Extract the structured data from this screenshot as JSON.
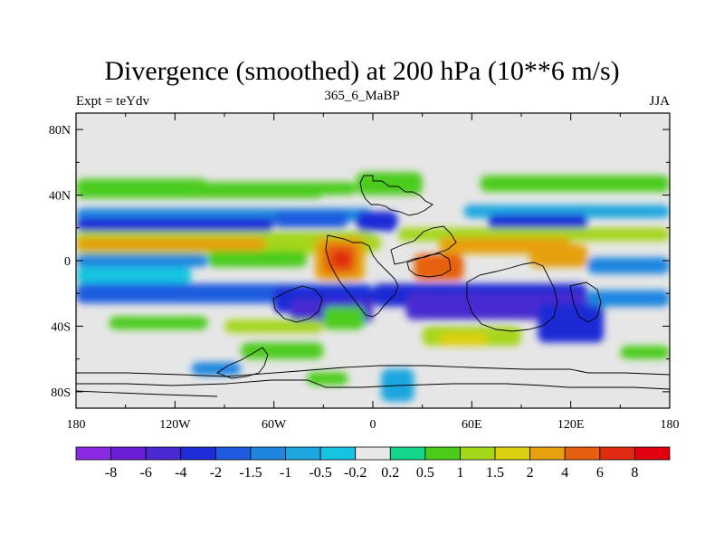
{
  "chart_data": {
    "type": "heatmap",
    "title": "Divergence (smoothed) at 200 hPa (10**6 m/s)",
    "left_label": "Expt = teYdv",
    "subtitle": "365_6_MaBP",
    "right_label": "JJA",
    "x_ticks": [
      {
        "value": -180,
        "label": "180"
      },
      {
        "value": -120,
        "label": "120W"
      },
      {
        "value": -60,
        "label": "60W"
      },
      {
        "value": 0,
        "label": "0"
      },
      {
        "value": 60,
        "label": "60E"
      },
      {
        "value": 120,
        "label": "120E"
      },
      {
        "value": 180,
        "label": "180"
      }
    ],
    "y_ticks": [
      {
        "value": 80,
        "label": "80N"
      },
      {
        "value": 40,
        "label": "40N"
      },
      {
        "value": 0,
        "label": "0"
      },
      {
        "value": -40,
        "label": "40S"
      },
      {
        "value": -80,
        "label": "80S"
      }
    ],
    "xlim": [
      -180,
      180
    ],
    "ylim": [
      -90,
      90
    ],
    "colorbar": {
      "labels": [
        "-8",
        "-6",
        "-4",
        "-2",
        "-1.5",
        "-1",
        "-0.5",
        "-0.2",
        "0.2",
        "0.5",
        "1",
        "1.5",
        "2",
        "4",
        "6",
        "8"
      ],
      "colors": [
        "#8a2be2",
        "#6a1fd6",
        "#4a2ad0",
        "#1f2bd6",
        "#1e5be0",
        "#1f86e0",
        "#1ea6e0",
        "#14c4e0",
        "#e8e8e8",
        "#14d68a",
        "#4ccc1a",
        "#a6d61a",
        "#ddd010",
        "#e6a010",
        "#e66010",
        "#e02a10",
        "#e00010"
      ]
    },
    "background_color": "#e6e6e6",
    "field_cells": [
      {
        "lon": -180,
        "lat": 50,
        "w": 80,
        "h": 12,
        "level": 10
      },
      {
        "lon": -120,
        "lat": 48,
        "w": 90,
        "h": 10,
        "level": 10
      },
      {
        "lon": -40,
        "lat": 48,
        "w": 30,
        "h": 8,
        "level": 10
      },
      {
        "lon": -10,
        "lat": 54,
        "w": 40,
        "h": 14,
        "level": 10
      },
      {
        "lon": 65,
        "lat": 52,
        "w": 115,
        "h": 10,
        "level": 10
      },
      {
        "lon": -180,
        "lat": 32,
        "w": 180,
        "h": 8,
        "level": 5
      },
      {
        "lon": -180,
        "lat": 26,
        "w": 120,
        "h": 8,
        "level": 3
      },
      {
        "lon": -60,
        "lat": 30,
        "w": 45,
        "h": 10,
        "level": 4
      },
      {
        "lon": -10,
        "lat": 30,
        "w": 25,
        "h": 12,
        "level": 3
      },
      {
        "lon": 55,
        "lat": 34,
        "w": 125,
        "h": 8,
        "level": 6
      },
      {
        "lon": 70,
        "lat": 28,
        "w": 60,
        "h": 10,
        "level": 3
      },
      {
        "lon": -180,
        "lat": 18,
        "w": 180,
        "h": 14,
        "level": 11
      },
      {
        "lon": -180,
        "lat": 14,
        "w": 115,
        "h": 8,
        "level": 13
      },
      {
        "lon": 15,
        "lat": 20,
        "w": 165,
        "h": 8,
        "level": 11
      },
      {
        "lon": 40,
        "lat": 14,
        "w": 80,
        "h": 10,
        "level": 13
      },
      {
        "lon": -20,
        "lat": 16,
        "w": 25,
        "h": 10,
        "level": 11
      },
      {
        "lon": -35,
        "lat": 14,
        "w": 30,
        "h": 26,
        "level": 13
      },
      {
        "lon": -30,
        "lat": 10,
        "w": 20,
        "h": 18,
        "level": 14
      },
      {
        "lon": -25,
        "lat": 6,
        "w": 12,
        "h": 10,
        "level": 15
      },
      {
        "lon": 25,
        "lat": 4,
        "w": 30,
        "h": 16,
        "level": 14
      },
      {
        "lon": 95,
        "lat": 10,
        "w": 35,
        "h": 14,
        "level": 13
      },
      {
        "lon": -180,
        "lat": 4,
        "w": 80,
        "h": 8,
        "level": 5
      },
      {
        "lon": -100,
        "lat": 6,
        "w": 60,
        "h": 10,
        "level": 10
      },
      {
        "lon": -180,
        "lat": -4,
        "w": 70,
        "h": 10,
        "level": 7
      },
      {
        "lon": 130,
        "lat": 2,
        "w": 50,
        "h": 10,
        "level": 5
      },
      {
        "lon": -180,
        "lat": -14,
        "w": 180,
        "h": 12,
        "level": 4
      },
      {
        "lon": -60,
        "lat": -16,
        "w": 60,
        "h": 16,
        "level": 3
      },
      {
        "lon": -50,
        "lat": -24,
        "w": 50,
        "h": 14,
        "level": 2
      },
      {
        "lon": 0,
        "lat": -14,
        "w": 130,
        "h": 14,
        "level": 3
      },
      {
        "lon": 20,
        "lat": -20,
        "w": 110,
        "h": 16,
        "level": 2
      },
      {
        "lon": 100,
        "lat": -26,
        "w": 40,
        "h": 24,
        "level": 3
      },
      {
        "lon": 130,
        "lat": -18,
        "w": 50,
        "h": 10,
        "level": 5
      },
      {
        "lon": -160,
        "lat": -34,
        "w": 60,
        "h": 8,
        "level": 10
      },
      {
        "lon": -90,
        "lat": -36,
        "w": 60,
        "h": 8,
        "level": 11
      },
      {
        "lon": -30,
        "lat": -28,
        "w": 25,
        "h": 14,
        "level": 10
      },
      {
        "lon": 30,
        "lat": -40,
        "w": 60,
        "h": 12,
        "level": 11
      },
      {
        "lon": 40,
        "lat": -44,
        "w": 30,
        "h": 8,
        "level": 12
      },
      {
        "lon": -80,
        "lat": -50,
        "w": 50,
        "h": 10,
        "level": 10
      },
      {
        "lon": -110,
        "lat": -62,
        "w": 30,
        "h": 8,
        "level": 5
      },
      {
        "lon": 5,
        "lat": -66,
        "w": 20,
        "h": 20,
        "level": 6
      },
      {
        "lon": 150,
        "lat": -52,
        "w": 30,
        "h": 8,
        "level": 10
      },
      {
        "lon": -40,
        "lat": -68,
        "w": 25,
        "h": 8,
        "level": 10
      }
    ]
  }
}
